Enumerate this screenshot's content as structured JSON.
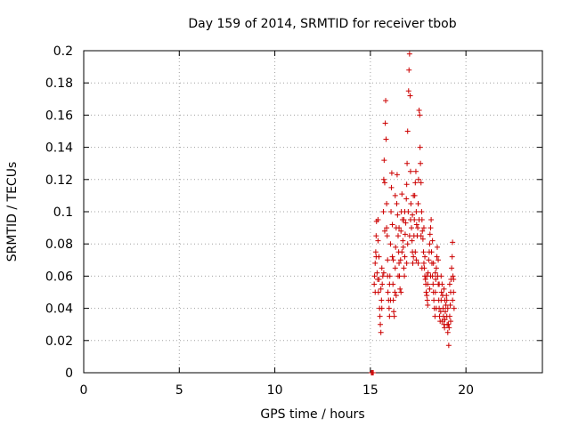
{
  "chart_data": {
    "type": "scatter",
    "title": "Day 159 of 2014, SRMTID for receiver tbob",
    "xlabel": "GPS time / hours",
    "ylabel": "SRMTID / TECUs",
    "xlim": [
      0,
      24
    ],
    "ylim": [
      0,
      0.2
    ],
    "xticks": [
      0,
      5,
      10,
      15,
      20
    ],
    "xtick_labels": [
      "0",
      "5",
      "10",
      "15",
      "20"
    ],
    "yticks": [
      0,
      0.02,
      0.04,
      0.06,
      0.08,
      0.1,
      0.12,
      0.14,
      0.16,
      0.18,
      0.2
    ],
    "ytick_labels": [
      "0",
      "0.02",
      "0.04",
      "0.06",
      "0.08",
      "0.1",
      "0.12",
      "0.14",
      "0.16",
      "0.18",
      "0.2"
    ],
    "grid": true,
    "marker": "+",
    "series_color": "#cc0000",
    "series": [
      {
        "name": "SRMTID",
        "points": [
          [
            15.05,
            0.0
          ],
          [
            15.1,
            0.0
          ],
          [
            15.15,
            0.0
          ],
          [
            15.2,
            0.055
          ],
          [
            15.22,
            0.06
          ],
          [
            15.25,
            0.068
          ],
          [
            15.28,
            0.075
          ],
          [
            15.3,
            0.085
          ],
          [
            15.32,
            0.094
          ],
          [
            15.35,
            0.062
          ],
          [
            15.38,
            0.058
          ],
          [
            15.4,
            0.095
          ],
          [
            15.42,
            0.05
          ],
          [
            15.45,
            0.072
          ],
          [
            15.48,
            0.04
          ],
          [
            15.5,
            0.035
          ],
          [
            15.52,
            0.03
          ],
          [
            15.55,
            0.025
          ],
          [
            15.58,
            0.045
          ],
          [
            15.6,
            0.065
          ],
          [
            15.62,
            0.055
          ],
          [
            15.65,
            0.06
          ],
          [
            15.68,
            0.1
          ],
          [
            15.7,
            0.12
          ],
          [
            15.72,
            0.132
          ],
          [
            15.75,
            0.118
          ],
          [
            15.78,
            0.155
          ],
          [
            15.8,
            0.169
          ],
          [
            15.82,
            0.145
          ],
          [
            15.85,
            0.09
          ],
          [
            15.88,
            0.085
          ],
          [
            15.9,
            0.07
          ],
          [
            15.92,
            0.05
          ],
          [
            15.95,
            0.045
          ],
          [
            15.98,
            0.04
          ],
          [
            16.0,
            0.035
          ],
          [
            16.02,
            0.06
          ],
          [
            16.05,
            0.08
          ],
          [
            16.08,
            0.1
          ],
          [
            16.1,
            0.115
          ],
          [
            16.12,
            0.124
          ],
          [
            16.15,
            0.072
          ],
          [
            16.18,
            0.055
          ],
          [
            16.2,
            0.045
          ],
          [
            16.22,
            0.038
          ],
          [
            16.25,
            0.035
          ],
          [
            16.28,
            0.05
          ],
          [
            16.3,
            0.065
          ],
          [
            16.32,
            0.078
          ],
          [
            16.35,
            0.09
          ],
          [
            16.38,
            0.105
          ],
          [
            16.4,
            0.123
          ],
          [
            16.42,
            0.098
          ],
          [
            16.45,
            0.085
          ],
          [
            16.48,
            0.075
          ],
          [
            16.5,
            0.068
          ],
          [
            16.52,
            0.06
          ],
          [
            16.55,
            0.052
          ],
          [
            16.58,
            0.07
          ],
          [
            16.6,
            0.088
          ],
          [
            16.62,
            0.1
          ],
          [
            16.65,
            0.111
          ],
          [
            16.68,
            0.095
          ],
          [
            16.7,
            0.082
          ],
          [
            16.72,
            0.078
          ],
          [
            16.75,
            0.065
          ],
          [
            16.78,
            0.06
          ],
          [
            16.8,
            0.072
          ],
          [
            16.82,
            0.086
          ],
          [
            16.85,
            0.093
          ],
          [
            16.88,
            0.108
          ],
          [
            16.9,
            0.117
          ],
          [
            16.92,
            0.13
          ],
          [
            16.95,
            0.15
          ],
          [
            16.98,
            0.1
          ],
          [
            17.0,
            0.175
          ],
          [
            17.02,
            0.188
          ],
          [
            17.05,
            0.198
          ],
          [
            17.08,
            0.172
          ],
          [
            17.1,
            0.125
          ],
          [
            17.12,
            0.105
          ],
          [
            17.15,
            0.09
          ],
          [
            17.18,
            0.082
          ],
          [
            17.2,
            0.075
          ],
          [
            17.22,
            0.068
          ],
          [
            17.25,
            0.072
          ],
          [
            17.28,
            0.085
          ],
          [
            17.3,
            0.095
          ],
          [
            17.32,
            0.11
          ],
          [
            17.35,
            0.118
          ],
          [
            17.38,
            0.125
          ],
          [
            17.4,
            0.1
          ],
          [
            17.42,
            0.092
          ],
          [
            17.45,
            0.085
          ],
          [
            17.48,
            0.09
          ],
          [
            17.5,
            0.105
          ],
          [
            17.52,
            0.12
          ],
          [
            17.55,
            0.163
          ],
          [
            17.58,
            0.16
          ],
          [
            17.6,
            0.14
          ],
          [
            17.62,
            0.13
          ],
          [
            17.65,
            0.118
          ],
          [
            17.68,
            0.1
          ],
          [
            17.7,
            0.095
          ],
          [
            17.72,
            0.088
          ],
          [
            17.75,
            0.083
          ],
          [
            17.78,
            0.075
          ],
          [
            17.8,
            0.068
          ],
          [
            17.82,
            0.065
          ],
          [
            17.85,
            0.06
          ],
          [
            17.88,
            0.058
          ],
          [
            17.9,
            0.055
          ],
          [
            17.92,
            0.05
          ],
          [
            17.95,
            0.048
          ],
          [
            17.98,
            0.045
          ],
          [
            18.0,
            0.055
          ],
          [
            18.02,
            0.062
          ],
          [
            18.05,
            0.07
          ],
          [
            18.08,
            0.075
          ],
          [
            18.1,
            0.08
          ],
          [
            18.12,
            0.086
          ],
          [
            18.15,
            0.09
          ],
          [
            18.18,
            0.095
          ],
          [
            18.2,
            0.075
          ],
          [
            18.22,
            0.068
          ],
          [
            18.25,
            0.06
          ],
          [
            18.28,
            0.055
          ],
          [
            18.3,
            0.05
          ],
          [
            18.32,
            0.045
          ],
          [
            18.35,
            0.04
          ],
          [
            18.38,
            0.035
          ],
          [
            18.4,
            0.05
          ],
          [
            18.42,
            0.058
          ],
          [
            18.45,
            0.065
          ],
          [
            18.48,
            0.072
          ],
          [
            18.5,
            0.078
          ],
          [
            18.52,
            0.06
          ],
          [
            18.55,
            0.055
          ],
          [
            18.58,
            0.045
          ],
          [
            18.6,
            0.04
          ],
          [
            18.62,
            0.035
          ],
          [
            18.65,
            0.032
          ],
          [
            18.68,
            0.038
          ],
          [
            18.7,
            0.045
          ],
          [
            18.72,
            0.05
          ],
          [
            18.75,
            0.055
          ],
          [
            18.78,
            0.048
          ],
          [
            18.8,
            0.04
          ],
          [
            18.82,
            0.035
          ],
          [
            18.85,
            0.03
          ],
          [
            18.88,
            0.028
          ],
          [
            18.9,
            0.033
          ],
          [
            18.92,
            0.038
          ],
          [
            18.95,
            0.042
          ],
          [
            18.98,
            0.048
          ],
          [
            19.0,
            0.035
          ],
          [
            19.02,
            0.03
          ],
          [
            19.05,
            0.025
          ],
          [
            19.08,
            0.03
          ],
          [
            19.1,
            0.017
          ],
          [
            19.12,
            0.028
          ],
          [
            19.15,
            0.035
          ],
          [
            19.18,
            0.042
          ],
          [
            19.2,
            0.05
          ],
          [
            19.22,
            0.058
          ],
          [
            19.25,
            0.065
          ],
          [
            19.28,
            0.072
          ],
          [
            19.3,
            0.081
          ],
          [
            19.32,
            0.06
          ],
          [
            19.35,
            0.05
          ],
          [
            19.38,
            0.04
          ],
          [
            15.3,
            0.072
          ],
          [
            15.45,
            0.058
          ],
          [
            15.6,
            0.04
          ],
          [
            15.75,
            0.088
          ],
          [
            15.9,
            0.06
          ],
          [
            16.05,
            0.045
          ],
          [
            16.2,
            0.07
          ],
          [
            16.35,
            0.048
          ],
          [
            16.5,
            0.09
          ],
          [
            16.65,
            0.075
          ],
          [
            16.8,
            0.1
          ],
          [
            16.95,
            0.08
          ],
          [
            17.1,
            0.095
          ],
          [
            17.25,
            0.11
          ],
          [
            17.4,
            0.07
          ],
          [
            17.55,
            0.095
          ],
          [
            17.7,
            0.065
          ],
          [
            17.85,
            0.072
          ],
          [
            18.0,
            0.042
          ],
          [
            18.15,
            0.06
          ],
          [
            18.3,
            0.068
          ],
          [
            18.45,
            0.04
          ],
          [
            18.6,
            0.055
          ],
          [
            18.75,
            0.032
          ],
          [
            18.9,
            0.045
          ],
          [
            19.05,
            0.04
          ],
          [
            19.2,
            0.032
          ],
          [
            19.35,
            0.058
          ],
          [
            15.25,
            0.05
          ],
          [
            15.4,
            0.082
          ],
          [
            15.55,
            0.052
          ],
          [
            15.7,
            0.062
          ],
          [
            15.85,
            0.105
          ],
          [
            16.0,
            0.055
          ],
          [
            16.15,
            0.092
          ],
          [
            16.3,
            0.11
          ],
          [
            16.45,
            0.06
          ],
          [
            16.6,
            0.05
          ],
          [
            16.75,
            0.095
          ],
          [
            16.9,
            0.068
          ],
          [
            17.05,
            0.085
          ],
          [
            17.2,
            0.098
          ],
          [
            17.35,
            0.075
          ],
          [
            17.5,
            0.068
          ],
          [
            17.65,
            0.085
          ],
          [
            17.8,
            0.09
          ],
          [
            17.95,
            0.06
          ],
          [
            18.1,
            0.052
          ],
          [
            18.25,
            0.082
          ],
          [
            18.4,
            0.062
          ],
          [
            18.55,
            0.07
          ],
          [
            18.7,
            0.06
          ],
          [
            18.85,
            0.052
          ],
          [
            19.0,
            0.045
          ],
          [
            19.15,
            0.055
          ],
          [
            19.3,
            0.045
          ]
        ]
      }
    ]
  }
}
